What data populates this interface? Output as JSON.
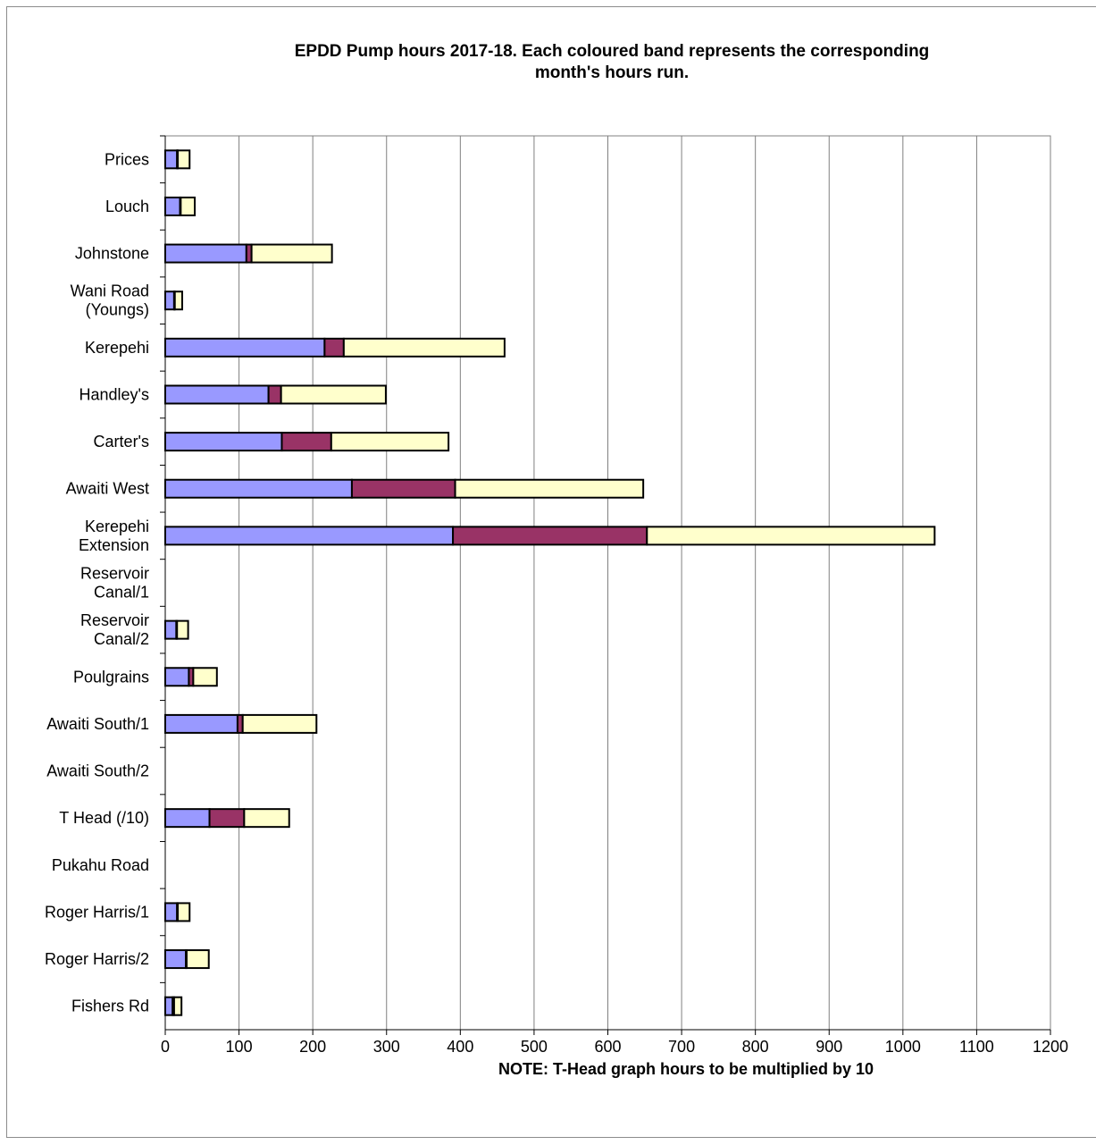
{
  "chart_data": {
    "type": "bar",
    "orientation": "horizontal",
    "stacked": true,
    "title": "EPDD Pump hours 2017-18.  Each coloured band represents the corresponding\nmonth's hours run.",
    "xlabel": "NOTE: T-Head graph hours to be multiplied by 10",
    "ylabel": "",
    "xlim": [
      0,
      1200
    ],
    "xticks": [
      0,
      100,
      200,
      300,
      400,
      500,
      600,
      700,
      800,
      900,
      1000,
      1100,
      1200
    ],
    "grid": "vertical",
    "legend": "none",
    "categories": [
      "Prices",
      "Louch",
      "Johnstone",
      "Wani Road\n(Youngs)",
      "Kerepehi",
      "Handley's",
      "Carter's",
      "Awaiti West",
      "Kerepehi\nExtension",
      "Reservoir\nCanal/1",
      "Reservoir\nCanal/2",
      "Poulgrains",
      "Awaiti South/1",
      "Awaiti South/2",
      "T Head (/10)",
      "Pukahu Road",
      "Roger Harris/1",
      "Roger Harris/2",
      "Fishers Rd"
    ],
    "series": [
      {
        "color": "#9999ff",
        "values": [
          16,
          20,
          110,
          12,
          216,
          140,
          158,
          253,
          390,
          0,
          15,
          32,
          98,
          0,
          60,
          0,
          16,
          28,
          10
        ]
      },
      {
        "color": "#993366",
        "values": [
          1,
          1,
          7,
          1,
          26,
          17,
          67,
          140,
          263,
          0,
          1,
          6,
          7,
          0,
          47,
          0,
          1,
          1,
          2
        ]
      },
      {
        "color": "#ffffcc",
        "values": [
          16,
          19,
          109,
          10,
          218,
          142,
          159,
          255,
          390,
          0,
          15,
          32,
          100,
          0,
          61,
          0,
          16,
          30,
          10
        ]
      }
    ]
  }
}
